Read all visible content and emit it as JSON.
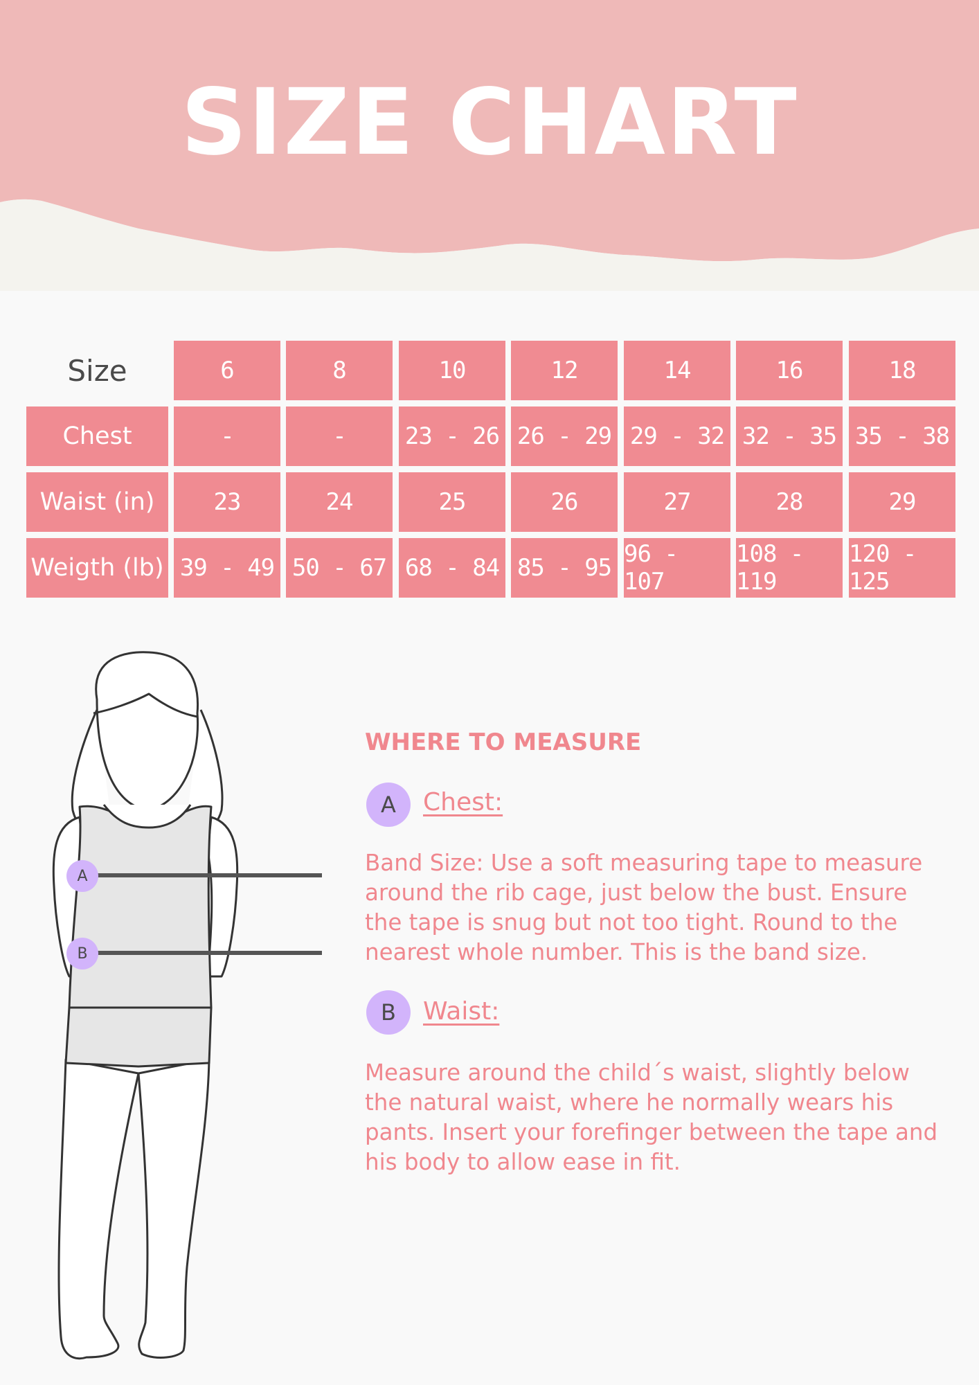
{
  "header": {
    "title": "SIZE CHART"
  },
  "colors": {
    "accent": "#f08b92",
    "header_bg": "#efb9b8",
    "badge": "#d2b4fb"
  },
  "table": {
    "size_label": "Size",
    "sizes": [
      "6",
      "8",
      "10",
      "12",
      "14",
      "16",
      "18"
    ],
    "rows": [
      {
        "label": "Chest",
        "values": [
          "-",
          "-",
          "23 - 26",
          "26 - 29",
          "29 - 32",
          "32 - 35",
          "35 - 38"
        ]
      },
      {
        "label": "Waist (in)",
        "values": [
          "23",
          "24",
          "25",
          "26",
          "27",
          "28",
          "29"
        ]
      },
      {
        "label": "Weigth (lb)",
        "values": [
          "39 - 49",
          "50 - 67",
          "68 - 84",
          "85 - 95",
          "96 - 107",
          "108 - 119",
          "120 - 125"
        ]
      }
    ]
  },
  "measure": {
    "heading": "WHERE TO MEASURE",
    "chest": {
      "badge": "A",
      "title": "Chest:",
      "text": "Band Size: Use a soft measuring tape to measure around the rib cage, just below the bust. Ensure the tape is snug but not too tight. Round to the nearest whole number. This is the band size."
    },
    "waist": {
      "badge": "B",
      "title": "Waist:",
      "text": "Measure around the child´s waist, slightly below the natural waist, where he normally wears his pants. Insert your forefinger between the tape and his body to allow ease in fit."
    }
  },
  "figure": {
    "marker_a": "A",
    "marker_b": "B"
  }
}
